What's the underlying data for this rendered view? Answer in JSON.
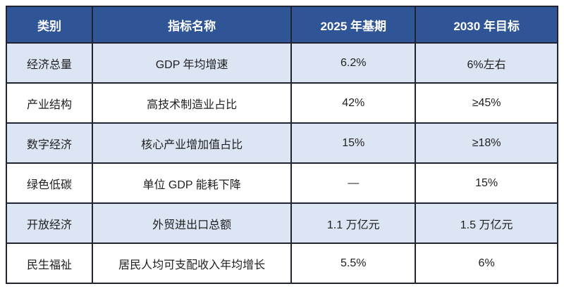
{
  "table": {
    "headers": [
      "类别",
      "指标名称",
      "2025 年基期",
      "2030 年目标"
    ],
    "rows": [
      {
        "category": "经济总量",
        "indicator": "GDP 年均增速",
        "base_2025": "6.2%",
        "target_2030": "6%左右"
      },
      {
        "category": "产业结构",
        "indicator": "高技术制造业占比",
        "base_2025": "42%",
        "target_2030": "≥45%"
      },
      {
        "category": "数字经济",
        "indicator": "核心产业增加值占比",
        "base_2025": "15%",
        "target_2030": "≥18%"
      },
      {
        "category": "绿色低碳",
        "indicator": "单位 GDP 能耗下降",
        "base_2025": "—",
        "target_2030": "15%"
      },
      {
        "category": "开放经济",
        "indicator": "外贸进出口总额",
        "base_2025": "1.1 万亿元",
        "target_2030": "1.5 万亿元"
      },
      {
        "category": "民生福祉",
        "indicator": "居民人均可支配收入年均增长",
        "base_2025": "5.5%",
        "target_2030": "6%"
      }
    ]
  },
  "colors": {
    "header_bg": "#2f5597",
    "header_text": "#ffffff",
    "striped_row_bg": "#dce5f3",
    "plain_row_bg": "#ffffff",
    "border": "#1f2430",
    "body_text": "#1f1f1f"
  }
}
